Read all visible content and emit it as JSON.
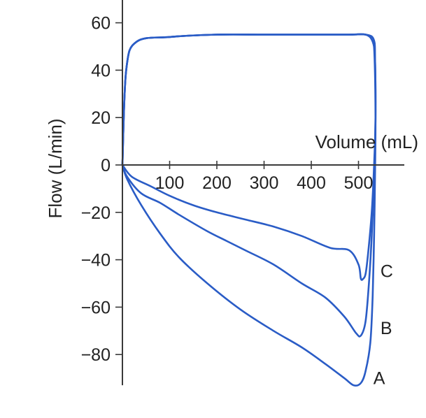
{
  "chart_data": {
    "type": "line",
    "xlabel": "Volume (mL)",
    "ylabel": "Flow (L/min)",
    "xlim": [
      0,
      600
    ],
    "ylim": [
      -90,
      68
    ],
    "x_ticks": [
      100,
      200,
      300,
      400,
      500
    ],
    "y_ticks": [
      60,
      40,
      20,
      0,
      -20,
      -40,
      -60,
      -80
    ],
    "y_tick_labels": [
      "60",
      "40",
      "20",
      "0",
      "−20",
      "−40",
      "−60",
      "−80"
    ],
    "line_color": "#2a5cc6",
    "series": [
      {
        "name": "A",
        "x": [
          0,
          10,
          40,
          80,
          120,
          180,
          250,
          320,
          380,
          430,
          470,
          490,
          505,
          515,
          525,
          530,
          533,
          535,
          536,
          534,
          530,
          515,
          480,
          400,
          300,
          200,
          100,
          30,
          8,
          0
        ],
        "y": [
          0,
          -6,
          -17,
          -29,
          -39,
          -50,
          -61,
          -70,
          -77,
          -84,
          -90,
          -93,
          -92,
          -87,
          -75,
          -55,
          -30,
          -5,
          20,
          45,
          52,
          55,
          55,
          55,
          55,
          55,
          54,
          52,
          40,
          0
        ]
      },
      {
        "name": "B",
        "x": [
          0,
          10,
          40,
          80,
          120,
          180,
          220,
          260,
          320,
          380,
          430,
          470,
          495,
          505,
          515,
          522,
          528,
          533,
          536,
          535,
          532,
          515,
          480,
          400,
          300,
          200,
          100,
          30,
          8,
          0
        ],
        "y": [
          0,
          -5,
          -12,
          -16,
          -21,
          -28,
          -32,
          -36,
          -42,
          -50,
          -56,
          -64,
          -71,
          -72,
          -66,
          -50,
          -30,
          -5,
          20,
          45,
          53,
          55,
          55,
          55,
          55,
          55,
          54,
          52,
          40,
          0
        ]
      },
      {
        "name": "C",
        "x": [
          0,
          20,
          60,
          100,
          150,
          200,
          260,
          320,
          380,
          440,
          480,
          500,
          505,
          510,
          515,
          520,
          528,
          533,
          536,
          535,
          532,
          515,
          480,
          400,
          300,
          200,
          100,
          30,
          8,
          0
        ],
        "y": [
          0,
          -5,
          -9,
          -13,
          -17,
          -20,
          -23,
          -26,
          -30,
          -35,
          -36,
          -42,
          -48,
          -48,
          -46,
          -38,
          -20,
          0,
          20,
          45,
          53,
          55,
          55,
          55,
          55,
          55,
          54,
          52,
          40,
          0
        ]
      }
    ]
  }
}
